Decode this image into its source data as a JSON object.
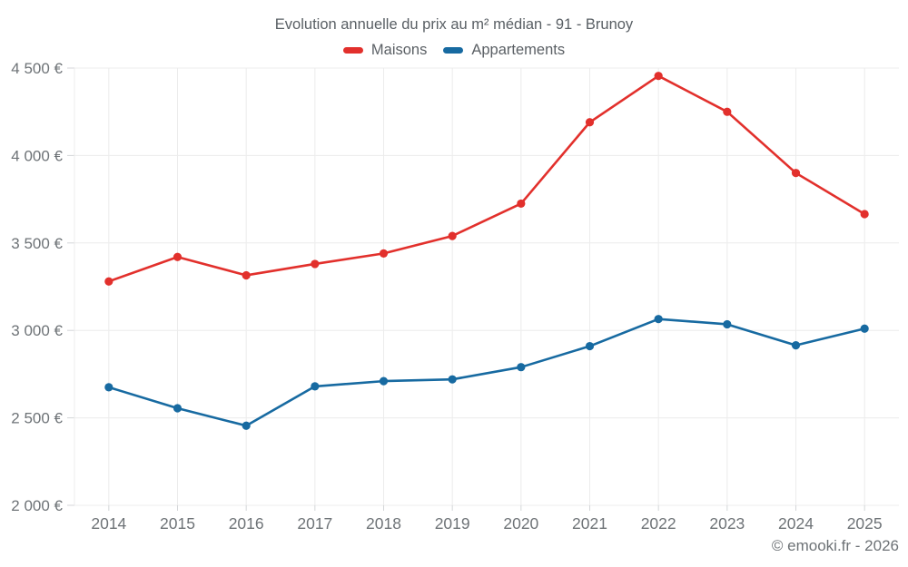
{
  "page": {
    "footer": "© emooki.fr - 2026"
  },
  "theme": {
    "maisons_color": "#e2302c",
    "appartements_color": "#176aa1",
    "grid_color": "#ececec",
    "tick_color": "#d4d6d8",
    "axis_text_color": "#6e7377",
    "title_text_color": "#595f64",
    "background": "#ffffff"
  },
  "chart_data": {
    "type": "line",
    "title": "Evolution annuelle du prix au m² médian - 91 - Brunoy",
    "xlabel": "",
    "ylabel": "",
    "categories": [
      "2014",
      "2015",
      "2016",
      "2017",
      "2018",
      "2019",
      "2020",
      "2021",
      "2022",
      "2023",
      "2024",
      "2025"
    ],
    "series": [
      {
        "name": "Maisons",
        "color": "#e2302c",
        "values": [
          3280,
          3420,
          3315,
          3380,
          3440,
          3540,
          3725,
          4190,
          4455,
          4250,
          3900,
          3665
        ]
      },
      {
        "name": "Appartements",
        "color": "#176aa1",
        "values": [
          2675,
          2555,
          2455,
          2680,
          2710,
          2720,
          2790,
          2910,
          3065,
          3035,
          2915,
          3010
        ]
      }
    ],
    "ylim": [
      2000,
      4500
    ],
    "y_ticks": [
      {
        "value": 4500,
        "label": "4 500 €"
      },
      {
        "value": 4000,
        "label": "4 000 €"
      },
      {
        "value": 3500,
        "label": "3 500 €"
      },
      {
        "value": 3000,
        "label": "3 000 €"
      },
      {
        "value": 2500,
        "label": "2 500 €"
      },
      {
        "value": 2000,
        "label": "2 000 €"
      }
    ],
    "grid": true,
    "legend_position": "top"
  }
}
